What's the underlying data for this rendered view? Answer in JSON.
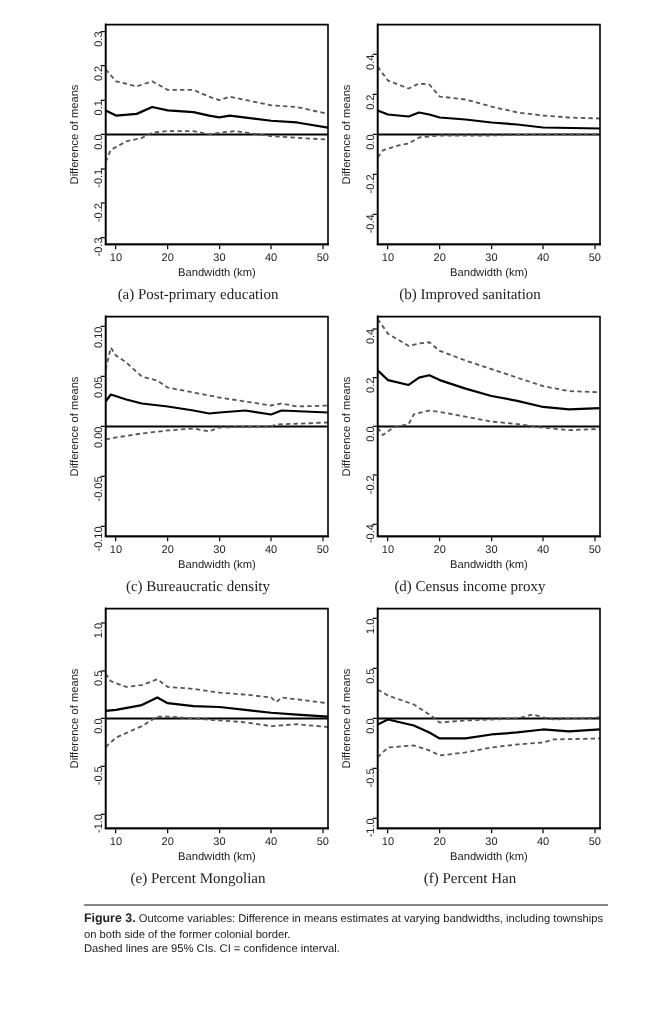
{
  "chart_data": [
    {
      "type": "line",
      "title": "(a) Post-primary education",
      "xlabel": "Bandwidth (km)",
      "ylabel": "Difference of means",
      "marker": "none",
      "xlim": [
        8,
        51
      ],
      "xticks": [
        10,
        20,
        30,
        40,
        50
      ],
      "ylim": [
        -0.32,
        0.32
      ],
      "yticks": [
        {
          "value": -0.3,
          "label": "-0.3"
        },
        {
          "value": -0.2,
          "label": "-0.2"
        },
        {
          "value": -0.1,
          "label": "-0.1"
        },
        {
          "value": 0,
          "label": "0.0"
        },
        {
          "value": 0.1,
          "label": "0.1"
        },
        {
          "value": 0.2,
          "label": "0.2"
        },
        {
          "value": 0.3,
          "label": "0.3"
        }
      ],
      "ref_lines": [
        {
          "axis": "y",
          "value": 0,
          "color": "#000000"
        }
      ],
      "series": [
        {
          "color": "#000000",
          "line_style": "solid",
          "x": [
            8,
            10,
            14,
            17,
            20,
            25,
            28,
            30,
            32,
            40,
            45,
            51
          ],
          "values": [
            0.07,
            0.055,
            0.06,
            0.08,
            0.07,
            0.065,
            0.055,
            0.05,
            0.055,
            0.04,
            0.035,
            0.02
          ]
        },
        {
          "color": "#555555",
          "line_style": "dashed",
          "x": [
            8,
            10,
            14,
            17,
            20,
            25,
            28,
            30,
            32,
            40,
            45,
            51
          ],
          "values": [
            0.19,
            0.155,
            0.14,
            0.155,
            0.13,
            0.13,
            0.11,
            0.1,
            0.11,
            0.085,
            0.08,
            0.06
          ]
        },
        {
          "color": "#555555",
          "line_style": "dashed",
          "x": [
            8,
            9,
            12,
            15,
            17,
            20,
            25,
            28,
            30,
            33,
            40,
            51
          ],
          "values": [
            -0.08,
            -0.045,
            -0.02,
            -0.01,
            0.005,
            0.01,
            0.01,
            0,
            0.005,
            0.01,
            -0.005,
            -0.015
          ]
        }
      ]
    },
    {
      "type": "line",
      "title": "(b) Improved sanitation",
      "xlabel": "Bandwidth (km)",
      "ylabel": "Difference of means",
      "marker": "none",
      "xlim": [
        8,
        51
      ],
      "xticks": [
        10,
        20,
        30,
        40,
        50
      ],
      "ylim": [
        -0.55,
        0.55
      ],
      "yticks": [
        {
          "value": -0.4,
          "label": "-0.4"
        },
        {
          "value": -0.2,
          "label": "-0.2"
        },
        {
          "value": 0,
          "label": "0.0"
        },
        {
          "value": 0.2,
          "label": "0.2"
        },
        {
          "value": 0.4,
          "label": "0.4"
        }
      ],
      "ref_lines": [
        {
          "axis": "y",
          "value": 0,
          "color": "#000000"
        }
      ],
      "series": [
        {
          "color": "#000000",
          "line_style": "solid",
          "x": [
            8,
            10,
            14,
            16,
            18,
            20,
            25,
            30,
            35,
            40,
            51
          ],
          "values": [
            0.12,
            0.1,
            0.09,
            0.11,
            0.1,
            0.085,
            0.075,
            0.06,
            0.05,
            0.035,
            0.03
          ]
        },
        {
          "color": "#555555",
          "line_style": "dashed",
          "x": [
            8,
            10,
            14,
            16,
            18,
            20,
            25,
            30,
            35,
            40,
            45,
            51
          ],
          "values": [
            0.34,
            0.27,
            0.23,
            0.255,
            0.25,
            0.19,
            0.175,
            0.14,
            0.11,
            0.095,
            0.085,
            0.08
          ]
        },
        {
          "color": "#555555",
          "line_style": "dashed",
          "x": [
            8,
            9,
            12,
            14,
            16,
            20,
            30,
            40,
            51
          ],
          "values": [
            -0.115,
            -0.08,
            -0.055,
            -0.045,
            -0.015,
            -0.005,
            -0.005,
            0,
            0
          ]
        }
      ]
    },
    {
      "type": "line",
      "title": "(c) Bureaucratic density",
      "xlabel": "Bandwidth (km)",
      "ylabel": "Difference of means",
      "marker": "none",
      "xlim": [
        8,
        51
      ],
      "xticks": [
        10,
        20,
        30,
        40,
        50
      ],
      "ylim": [
        -0.11,
        0.11
      ],
      "yticks": [
        {
          "value": -0.1,
          "label": "-0.10"
        },
        {
          "value": -0.05,
          "label": "-0.05"
        },
        {
          "value": 0,
          "label": "0.00"
        },
        {
          "value": 0.05,
          "label": "0.05"
        },
        {
          "value": 0.1,
          "label": "0.10"
        }
      ],
      "ref_lines": [
        {
          "axis": "y",
          "value": 0,
          "color": "#000000"
        }
      ],
      "series": [
        {
          "color": "#000000",
          "line_style": "solid",
          "x": [
            8,
            9,
            12,
            15,
            20,
            25,
            28,
            30,
            35,
            40,
            42,
            51
          ],
          "values": [
            0.025,
            0.032,
            0.027,
            0.023,
            0.02,
            0.016,
            0.013,
            0.014,
            0.016,
            0.012,
            0.016,
            0.014
          ]
        },
        {
          "color": "#555555",
          "line_style": "dashed",
          "x": [
            8,
            9,
            10,
            12,
            15,
            18,
            20,
            25,
            30,
            35,
            40,
            42,
            45,
            51
          ],
          "values": [
            0.057,
            0.079,
            0.071,
            0.064,
            0.05,
            0.046,
            0.039,
            0.034,
            0.029,
            0.025,
            0.021,
            0.023,
            0.02,
            0.021
          ]
        },
        {
          "color": "#555555",
          "line_style": "dashed",
          "x": [
            8,
            10,
            15,
            20,
            25,
            28,
            30,
            40,
            41,
            51
          ],
          "values": [
            -0.013,
            -0.011,
            -0.007,
            -0.004,
            -0.002,
            -0.005,
            -0.001,
            0,
            0.002,
            0.004
          ]
        }
      ]
    },
    {
      "type": "line",
      "title": "(d) Census income proxy",
      "xlabel": "Bandwidth (km)",
      "ylabel": "Difference of means",
      "marker": "none",
      "xlim": [
        8,
        51
      ],
      "xticks": [
        10,
        20,
        30,
        40,
        50
      ],
      "ylim": [
        -0.45,
        0.45
      ],
      "yticks": [
        {
          "value": -0.4,
          "label": "-0.4"
        },
        {
          "value": -0.2,
          "label": "-0.2"
        },
        {
          "value": 0,
          "label": "0.0"
        },
        {
          "value": 0.2,
          "label": "0.2"
        },
        {
          "value": 0.4,
          "label": "0.4"
        }
      ],
      "ref_lines": [
        {
          "axis": "y",
          "value": 0,
          "color": "#000000"
        }
      ],
      "series": [
        {
          "color": "#000000",
          "line_style": "solid",
          "x": [
            8,
            10,
            14,
            16,
            18,
            20,
            25,
            30,
            35,
            40,
            45,
            51
          ],
          "values": [
            0.23,
            0.19,
            0.17,
            0.2,
            0.21,
            0.19,
            0.155,
            0.125,
            0.105,
            0.08,
            0.07,
            0.075
          ]
        },
        {
          "color": "#555555",
          "line_style": "dashed",
          "x": [
            8,
            10,
            14,
            16,
            18,
            20,
            25,
            30,
            35,
            40,
            45,
            51
          ],
          "values": [
            0.44,
            0.38,
            0.33,
            0.34,
            0.345,
            0.31,
            0.27,
            0.235,
            0.2,
            0.165,
            0.145,
            0.14
          ]
        },
        {
          "color": "#555555",
          "line_style": "dashed",
          "x": [
            8,
            9,
            11,
            14,
            15,
            18,
            20,
            25,
            30,
            35,
            40,
            45,
            51
          ],
          "values": [
            -0.005,
            -0.035,
            -0.005,
            0.01,
            0.05,
            0.065,
            0.06,
            0.04,
            0.02,
            0.01,
            -0.005,
            -0.015,
            -0.01
          ]
        }
      ]
    },
    {
      "type": "line",
      "title": "(e) Percent Mongolian",
      "xlabel": "Bandwidth (km)",
      "ylabel": "Difference of means",
      "marker": "none",
      "xlim": [
        8,
        51
      ],
      "xticks": [
        10,
        20,
        30,
        40,
        50
      ],
      "ylim": [
        -1.15,
        1.15
      ],
      "yticks": [
        {
          "value": -1,
          "label": "-1.0"
        },
        {
          "value": -0.5,
          "label": "-0.5"
        },
        {
          "value": 0,
          "label": "0.0"
        },
        {
          "value": 0.5,
          "label": "0.5"
        },
        {
          "value": 1,
          "label": "1.0"
        }
      ],
      "ref_lines": [
        {
          "axis": "y",
          "value": 0,
          "color": "#000000"
        }
      ],
      "series": [
        {
          "color": "#000000",
          "line_style": "solid",
          "x": [
            8,
            10,
            15,
            18,
            20,
            25,
            30,
            35,
            40,
            45,
            51
          ],
          "values": [
            0.08,
            0.09,
            0.14,
            0.22,
            0.16,
            0.13,
            0.12,
            0.09,
            0.06,
            0.04,
            0.02
          ]
        },
        {
          "color": "#555555",
          "line_style": "dashed",
          "x": [
            8,
            9,
            12,
            15,
            18,
            20,
            25,
            30,
            35,
            40,
            41,
            42,
            45,
            51
          ],
          "values": [
            0.47,
            0.39,
            0.33,
            0.35,
            0.41,
            0.33,
            0.31,
            0.27,
            0.25,
            0.22,
            0.17,
            0.22,
            0.2,
            0.16
          ]
        },
        {
          "color": "#555555",
          "line_style": "dashed",
          "x": [
            8,
            10,
            15,
            18,
            20,
            25,
            30,
            35,
            40,
            45,
            51
          ],
          "values": [
            -0.3,
            -0.2,
            -0.08,
            0.02,
            0.02,
            0,
            -0.02,
            -0.04,
            -0.08,
            -0.06,
            -0.09
          ]
        }
      ]
    },
    {
      "type": "line",
      "title": "(f) Percent Han",
      "xlabel": "Bandwidth (km)",
      "ylabel": "Difference of means",
      "marker": "none",
      "xlim": [
        8,
        51
      ],
      "xticks": [
        10,
        20,
        30,
        40,
        50
      ],
      "ylim": [
        -1.1,
        1.1
      ],
      "yticks": [
        {
          "value": -1,
          "label": "-1.0"
        },
        {
          "value": -0.5,
          "label": "-0.5"
        },
        {
          "value": 0,
          "label": "0.0"
        },
        {
          "value": 0.5,
          "label": "0.5"
        },
        {
          "value": 1,
          "label": "1.0"
        }
      ],
      "ref_lines": [
        {
          "axis": "y",
          "value": 0,
          "color": "#000000"
        }
      ],
      "series": [
        {
          "color": "#000000",
          "line_style": "solid",
          "x": [
            8,
            10,
            15,
            18,
            20,
            25,
            30,
            35,
            40,
            45,
            51
          ],
          "values": [
            -0.06,
            -0.01,
            -0.07,
            -0.14,
            -0.2,
            -0.2,
            -0.16,
            -0.14,
            -0.11,
            -0.13,
            -0.11
          ]
        },
        {
          "color": "#555555",
          "line_style": "dashed",
          "x": [
            8,
            10,
            15,
            18,
            20,
            25,
            30,
            35,
            38,
            40,
            42,
            51
          ],
          "values": [
            0.29,
            0.23,
            0.14,
            0.04,
            -0.04,
            -0.02,
            -0.01,
            0,
            0.04,
            0.01,
            -0.01,
            0.01
          ]
        },
        {
          "color": "#555555",
          "line_style": "dashed",
          "x": [
            8,
            10,
            15,
            18,
            20,
            25,
            30,
            35,
            40,
            42,
            51
          ],
          "values": [
            -0.39,
            -0.29,
            -0.27,
            -0.32,
            -0.37,
            -0.34,
            -0.29,
            -0.26,
            -0.24,
            -0.21,
            -0.2
          ]
        }
      ]
    },
    {
      "type": "other",
      "title": "Figure 3.",
      "annotations": [
        "Outcome variables: Difference in means estimates at varying bandwidths, including townships on both side of the former colonial border.",
        "Dashed lines are 95% CIs. CI = confidence interval."
      ]
    }
  ]
}
